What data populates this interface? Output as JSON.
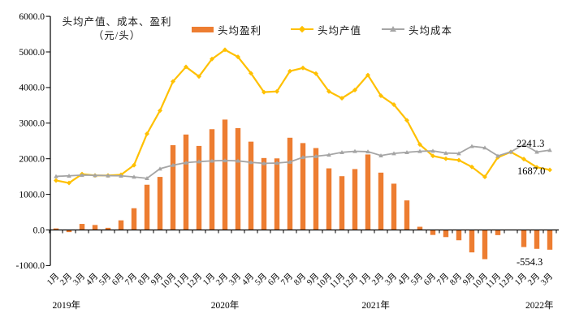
{
  "chart_data": {
    "type": "bar",
    "subtype": "combo-bar-line",
    "title": "头均产值、成本、盈利（元/头）",
    "axis_title": {
      "line1": "头均产值、成本、盈利",
      "line2": "（元/头）"
    },
    "ylim": [
      -1000,
      6000
    ],
    "ytick_step": 1000,
    "grid": false,
    "legend_position": "top",
    "y_tick_labels": [
      "6000.0",
      "5000.0",
      "4000.0",
      "3000.0",
      "2000.0",
      "1000.0",
      "0.0",
      "-1000.0"
    ],
    "categories": [
      "1月",
      "2月",
      "3月",
      "4月",
      "5月",
      "6月",
      "7月",
      "8月",
      "9月",
      "10月",
      "11月",
      "12月",
      "1月",
      "2月",
      "3月",
      "4月",
      "5月",
      "6月",
      "7月",
      "8月",
      "9月",
      "10月",
      "11月",
      "12月",
      "1月",
      "2月",
      "3月",
      "4月",
      "5月",
      "6月",
      "7月",
      "8月",
      "9月",
      "10月",
      "11月",
      "12月",
      "1月",
      "2月",
      "3月"
    ],
    "years": [
      {
        "label": "2019年",
        "pos": 0.8
      },
      {
        "label": "2020年",
        "pos": 13.0
      },
      {
        "label": "2021年",
        "pos": 24.6
      },
      {
        "label": "2022年",
        "pos": 37.2
      }
    ],
    "series": [
      {
        "name": "头均盈利",
        "type": "bar",
        "color": "#ED7D31",
        "values": [
          43,
          -60,
          170,
          140,
          60,
          270,
          610,
          1270,
          1490,
          2380,
          2680,
          2360,
          2830,
          3100,
          2860,
          2480,
          2020,
          2010,
          2590,
          2440,
          2300,
          1730,
          1510,
          1710,
          2120,
          1610,
          1300,
          830,
          90,
          -140,
          -200,
          -290,
          -630,
          -820,
          -145,
          10,
          -480,
          -530,
          -554.3
        ]
      },
      {
        "name": "头均产值",
        "type": "line",
        "marker": "diamond",
        "color": "#FFC000",
        "values": [
          1390,
          1320,
          1570,
          1530,
          1530,
          1550,
          1820,
          2700,
          3350,
          4170,
          4580,
          4310,
          4800,
          5060,
          4860,
          4400,
          3870,
          3890,
          4460,
          4550,
          4390,
          3890,
          3700,
          3930,
          4350,
          3770,
          3520,
          3080,
          2400,
          2080,
          2000,
          1960,
          1770,
          1490,
          2040,
          2190,
          1990,
          1760,
          1687
        ]
      },
      {
        "name": "头均成本",
        "type": "line",
        "marker": "triangle",
        "color": "#A5A5A5",
        "values": [
          1505,
          1520,
          1540,
          1535,
          1525,
          1520,
          1490,
          1450,
          1720,
          1820,
          1890,
          1920,
          1940,
          1950,
          1940,
          1900,
          1870,
          1880,
          1910,
          2040,
          2070,
          2110,
          2180,
          2210,
          2200,
          2090,
          2150,
          2180,
          2210,
          2220,
          2160,
          2150,
          2350,
          2310,
          2080,
          2195,
          2400,
          2190,
          2241.3
        ]
      }
    ],
    "end_labels": [
      {
        "text": "2241.3",
        "series": "头均成本"
      },
      {
        "text": "1687.0",
        "series": "头均产值"
      },
      {
        "text": "-554.3",
        "series": "头均盈利"
      }
    ]
  }
}
